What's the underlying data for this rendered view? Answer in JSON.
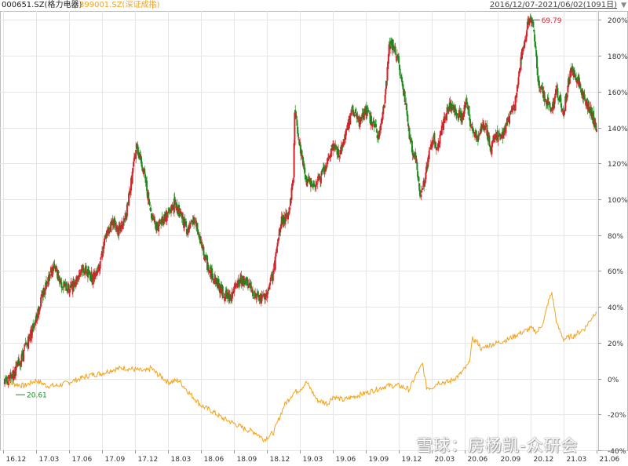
{
  "header": {
    "stock_label": "000651.SZ(格力电器)",
    "separator": "|",
    "index_label": "399001.SZ(深证成指)",
    "index_separator": "|",
    "date_range": "2016/12/07-2021/06/02(1091日)",
    "dropdown_icon": "triangle-down-icon"
  },
  "watermark": "雪球：房杨凯-众研会",
  "colors": {
    "up": "#d2222a",
    "down": "#1b8a1b",
    "index_line": "#f5a21b",
    "grid": "#e6e6e6",
    "max_label": "#d2222a",
    "min_label": "#1b8a1b"
  },
  "chart_data": {
    "type": "line",
    "xlabel": "",
    "ylabel": "",
    "ylim": [
      -40,
      205
    ],
    "y_ticks": [
      "200%",
      "180%",
      "160%",
      "140%",
      "120%",
      "100%",
      "80%",
      "60%",
      "40%",
      "20%",
      "0%",
      "-20%",
      "-40%"
    ],
    "y_tick_values": [
      200,
      180,
      160,
      140,
      120,
      100,
      80,
      60,
      40,
      20,
      0,
      -20,
      -40
    ],
    "x_ticks": [
      "16.12",
      "17.03",
      "17.06",
      "17.09",
      "17.12",
      "18.03",
      "18.06",
      "18.09",
      "18.12",
      "19.03",
      "19.06",
      "19.09",
      "19.12",
      "20.03",
      "20.06",
      "20.09",
      "20.12",
      "21.03",
      "21.06"
    ],
    "x_tick_values": [
      2016.92,
      2017.17,
      2017.42,
      2017.67,
      2017.92,
      2018.17,
      2018.42,
      2018.67,
      2018.92,
      2019.17,
      2019.42,
      2019.67,
      2019.92,
      2020.17,
      2020.42,
      2020.67,
      2020.92,
      2021.17,
      2021.42
    ],
    "x_range": [
      2016.93,
      2021.42
    ],
    "annotations": [
      {
        "label": "69.79",
        "type": "max"
      },
      {
        "label": "20.61",
        "type": "min"
      }
    ],
    "series": [
      {
        "name": "000651.SZ(格力电器)",
        "style": "candlestick",
        "x": [
          2016.93,
          2017.0,
          2017.05,
          2017.1,
          2017.15,
          2017.2,
          2017.25,
          2017.3,
          2017.33,
          2017.37,
          2017.42,
          2017.47,
          2017.52,
          2017.57,
          2017.6,
          2017.65,
          2017.7,
          2017.75,
          2017.8,
          2017.85,
          2017.88,
          2017.93,
          2017.97,
          2018.0,
          2018.03,
          2018.08,
          2018.12,
          2018.17,
          2018.22,
          2018.27,
          2018.32,
          2018.37,
          2018.4,
          2018.43,
          2018.48,
          2018.53,
          2018.58,
          2018.63,
          2018.68,
          2018.73,
          2018.78,
          2018.83,
          2018.88,
          2018.93,
          2018.97,
          2019.0,
          2019.03,
          2019.08,
          2019.12,
          2019.13,
          2019.17,
          2019.22,
          2019.27,
          2019.32,
          2019.37,
          2019.42,
          2019.47,
          2019.52,
          2019.57,
          2019.62,
          2019.67,
          2019.72,
          2019.77,
          2019.82,
          2019.85,
          2019.88,
          2019.92,
          2019.97,
          2020.0,
          2020.02,
          2020.05,
          2020.08,
          2020.12,
          2020.15,
          2020.18,
          2020.2,
          2020.25,
          2020.3,
          2020.35,
          2020.4,
          2020.43,
          2020.47,
          2020.52,
          2020.57,
          2020.62,
          2020.65,
          2020.7,
          2020.75,
          2020.8,
          2020.85,
          2020.9,
          2020.93,
          2020.95,
          2020.98,
          2021.02,
          2021.07,
          2021.12,
          2021.17,
          2021.22,
          2021.27,
          2021.32,
          2021.37,
          2021.42
        ],
        "values": [
          -3,
          3,
          10,
          20,
          30,
          42,
          55,
          62,
          58,
          52,
          50,
          55,
          62,
          58,
          56,
          65,
          80,
          88,
          82,
          90,
          105,
          130,
          120,
          110,
          95,
          85,
          88,
          92,
          98,
          90,
          82,
          88,
          80,
          72,
          60,
          55,
          48,
          45,
          50,
          56,
          52,
          46,
          44,
          50,
          60,
          75,
          88,
          90,
          112,
          150,
          130,
          110,
          108,
          112,
          118,
          130,
          125,
          138,
          150,
          142,
          150,
          142,
          135,
          160,
          188,
          185,
          175,
          155,
          135,
          128,
          122,
          102,
          112,
          125,
          135,
          128,
          140,
          152,
          150,
          145,
          155,
          140,
          135,
          142,
          128,
          136,
          135,
          145,
          152,
          180,
          198,
          200,
          188,
          165,
          158,
          150,
          160,
          148,
          172,
          168,
          158,
          150,
          140
        ]
      },
      {
        "name": "399001.SZ(深证成指)",
        "style": "line",
        "x": [
          2016.93,
          2017.0,
          2017.08,
          2017.17,
          2017.25,
          2017.33,
          2017.42,
          2017.5,
          2017.58,
          2017.67,
          2017.75,
          2017.83,
          2017.92,
          2018.0,
          2018.04,
          2018.08,
          2018.12,
          2018.17,
          2018.25,
          2018.33,
          2018.42,
          2018.5,
          2018.58,
          2018.67,
          2018.75,
          2018.83,
          2018.9,
          2018.97,
          2019.05,
          2019.12,
          2019.17,
          2019.22,
          2019.3,
          2019.38,
          2019.42,
          2019.5,
          2019.58,
          2019.67,
          2019.75,
          2019.83,
          2019.92,
          2020.0,
          2020.05,
          2020.1,
          2020.13,
          2020.17,
          2020.22,
          2020.3,
          2020.38,
          2020.45,
          2020.48,
          2020.52,
          2020.55,
          2020.58,
          2020.67,
          2020.75,
          2020.83,
          2020.92,
          2020.97,
          2021.02,
          2021.05,
          2021.08,
          2021.12,
          2021.17,
          2021.25,
          2021.33,
          2021.42
        ],
        "values": [
          -2,
          -3,
          -4,
          -1,
          -4,
          -4,
          -2,
          0,
          2,
          3,
          5,
          6,
          5,
          4,
          6,
          3,
          1,
          -2,
          -1,
          -8,
          -15,
          -18,
          -22,
          -25,
          -28,
          -30,
          -34,
          -30,
          -15,
          -8,
          -6,
          -2,
          -12,
          -14,
          -10,
          -12,
          -10,
          -8,
          -6,
          -4,
          -4,
          -6,
          2,
          8,
          -5,
          -5,
          -2,
          -2,
          2,
          8,
          22,
          20,
          16,
          18,
          20,
          22,
          25,
          28,
          26,
          32,
          42,
          48,
          30,
          22,
          24,
          28,
          38
        ]
      }
    ]
  }
}
